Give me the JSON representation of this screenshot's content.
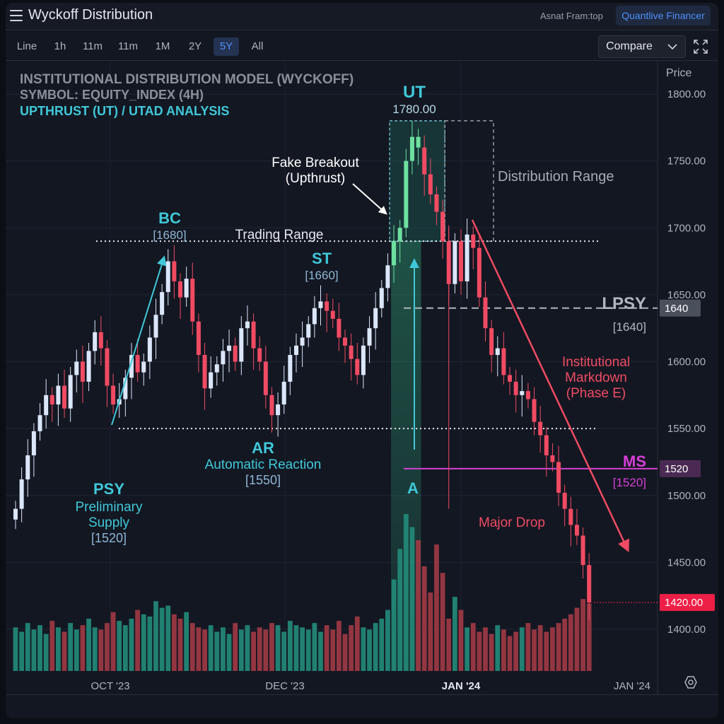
{
  "window": {
    "title": "Wyckoff Distribution",
    "user": "Asnat Fram:top",
    "badge": "Quantlive Financer"
  },
  "toolbar": {
    "timeframes": [
      "Line",
      "1h",
      "11m",
      "11m",
      "1M",
      "2Y",
      "5Y",
      "All"
    ],
    "active": "5Y",
    "compare_label": "Compare"
  },
  "chart_data": {
    "type": "candlestick",
    "title": "INSTITUTIONAL DISTRIBUTION MODEL (WYCKOFF)",
    "subtitle": "SYMBOL: EQUITY_INDEX (4H)",
    "subtitle2": "UPTHRUST (UT) / UTAD ANALYSIS",
    "price_axis_label": "Price",
    "y_ticks": [
      "1800.00",
      "1750.00",
      "1700.00",
      "1650.00",
      "1600.00",
      "1550.00",
      "1500.00",
      "1450.00",
      "1400.00"
    ],
    "x_ticks": [
      "OCT '23",
      "DEC '23",
      "JAN '24",
      "JAN '24"
    ],
    "ylim": [
      1380,
      1815
    ],
    "closes": [
      1490,
      1512,
      1530,
      1548,
      1560,
      1575,
      1568,
      1582,
      1565,
      1590,
      1600,
      1585,
      1608,
      1622,
      1610,
      1582,
      1568,
      1572,
      1588,
      1605,
      1592,
      1600,
      1618,
      1635,
      1652,
      1675,
      1660,
      1648,
      1662,
      1630,
      1605,
      1580,
      1592,
      1598,
      1608,
      1612,
      1600,
      1625,
      1630,
      1610,
      1600,
      1575,
      1560,
      1568,
      1585,
      1605,
      1612,
      1618,
      1628,
      1640,
      1645,
      1638,
      1632,
      1618,
      1612,
      1602,
      1590,
      1612,
      1625,
      1640,
      1655,
      1672,
      1690,
      1700,
      1750,
      1768,
      1760,
      1740,
      1725,
      1712,
      1690,
      1658,
      1690,
      1660,
      1695,
      1685,
      1648,
      1625,
      1605,
      1610,
      1590,
      1585,
      1575,
      1578,
      1572,
      1555,
      1545,
      1530,
      1525,
      1502,
      1490,
      1478,
      1470,
      1448,
      1420
    ],
    "volumes": [
      20,
      18,
      22,
      19,
      21,
      17,
      23,
      20,
      18,
      22,
      19,
      21,
      24,
      20,
      19,
      22,
      27,
      23,
      21,
      24,
      28,
      26,
      25,
      32,
      29,
      30,
      26,
      24,
      27,
      22,
      20,
      19,
      21,
      18,
      20,
      17,
      22,
      19,
      21,
      18,
      20,
      19,
      22,
      21,
      18,
      23,
      21,
      20,
      19,
      22,
      18,
      21,
      19,
      23,
      17,
      21,
      25,
      20,
      19,
      22,
      24,
      28,
      42,
      56,
      72,
      66,
      60,
      48,
      36,
      58,
      45,
      24,
      34,
      28,
      20,
      22,
      18,
      20,
      17,
      21,
      19,
      16,
      18,
      20,
      22,
      19,
      21,
      18,
      20,
      22,
      24,
      26,
      29,
      33,
      31
    ],
    "trading_range": {
      "top": 1690,
      "bottom": 1550,
      "label": "Trading Range"
    },
    "distribution_range_label": "Distribution Range",
    "levels": [
      {
        "name": "LPSY",
        "price": 1640,
        "label": "1640",
        "bracket": "[1640]",
        "color": "#b0b5bf"
      },
      {
        "name": "MS",
        "price": 1520,
        "label": "1520",
        "bracket": "[1520]",
        "color": "#d63fd6"
      }
    ],
    "last_price": {
      "value": 1420,
      "label": "1420.00",
      "color": "#ee1f46"
    },
    "annotations": {
      "psy": {
        "title": "PSY",
        "line1": "Preliminary",
        "line2": "Supply",
        "value": "[1520]"
      },
      "bc": {
        "title": "BC",
        "value": "[1680]"
      },
      "ar": {
        "title": "AR",
        "line1": "Automatic Reaction",
        "value": "[1550]"
      },
      "st": {
        "title": "ST",
        "value": "[1660]"
      },
      "ut": {
        "title": "UT",
        "value": "1780.00"
      },
      "fake_breakout": {
        "line1": "Fake Breakout",
        "line2": "(Upthrust)"
      },
      "a": {
        "title": "A"
      },
      "markdown": {
        "line1": "Institutional",
        "line2": "Markdown",
        "line3": "(Phase E)"
      },
      "major_drop": {
        "title": "Major Drop"
      }
    },
    "colors": {
      "up": "#dbe6fb",
      "down": "#f04b63",
      "ut": "#6ee0a0",
      "vol_up": "#238c7a",
      "vol_down": "#a23a45",
      "accent": "#40c8d8",
      "bg": "#131722"
    }
  }
}
